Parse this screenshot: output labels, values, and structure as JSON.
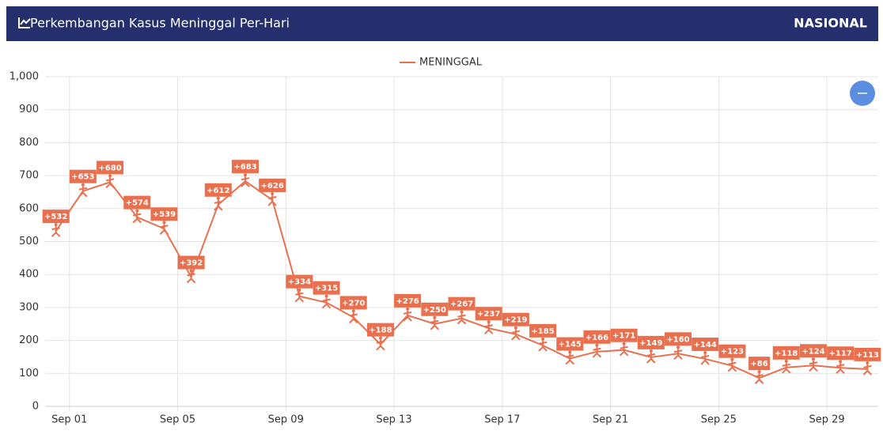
{
  "header": {
    "title": "Perkembangan Kasus Meninggal Per-Hari",
    "region": "NASIONAL"
  },
  "chart_data": {
    "type": "line",
    "x": [
      0.5,
      1.5,
      2.5,
      3.5,
      4.5,
      5.5,
      6.5,
      7.5,
      8.5,
      9.5,
      10.5,
      11.5,
      12.5,
      13.5,
      14.5,
      15.5,
      16.5,
      17.5,
      18.5,
      19.5,
      20.5,
      21.5,
      22.5,
      23.5,
      24.5,
      25.5,
      26.5,
      27.5,
      28.5,
      29.5,
      30.5
    ],
    "series": [
      {
        "name": "MENINGGAL",
        "color": "#e8704f",
        "values": [
          532,
          653,
          680,
          574,
          539,
          392,
          612,
          683,
          626,
          334,
          315,
          270,
          188,
          276,
          250,
          267,
          237,
          219,
          185,
          145,
          166,
          171,
          149,
          160,
          144,
          123,
          86,
          118,
          124,
          117,
          113
        ],
        "value_labels": [
          "+532",
          "+653",
          "+680",
          "+574",
          "+539",
          "+392",
          "+612",
          "+683",
          "+626",
          "+334",
          "+315",
          "+270",
          "+188",
          "+276",
          "+250",
          "+267",
          "+237",
          "+219",
          "+185",
          "+145",
          "+166",
          "+171",
          "+149",
          "+160",
          "+144",
          "+123",
          "+86",
          "+118",
          "+124",
          "+117",
          "+113"
        ]
      }
    ],
    "xlim": [
      0.1,
      30.9
    ],
    "xticks": [
      {
        "value": 1,
        "label": "Sep 01"
      },
      {
        "value": 5,
        "label": "Sep 05"
      },
      {
        "value": 9,
        "label": "Sep 09"
      },
      {
        "value": 13,
        "label": "Sep 13"
      },
      {
        "value": 17,
        "label": "Sep 17"
      },
      {
        "value": 21,
        "label": "Sep 21"
      },
      {
        "value": 25,
        "label": "Sep 25"
      },
      {
        "value": 29,
        "label": "Sep 29"
      }
    ],
    "ylim": [
      0,
      1000
    ],
    "yticks": [
      0,
      100,
      200,
      300,
      400,
      500,
      600,
      700,
      800,
      900,
      {
        "value": 1000,
        "label": "1,000"
      }
    ],
    "grid": true,
    "legend": "top"
  }
}
